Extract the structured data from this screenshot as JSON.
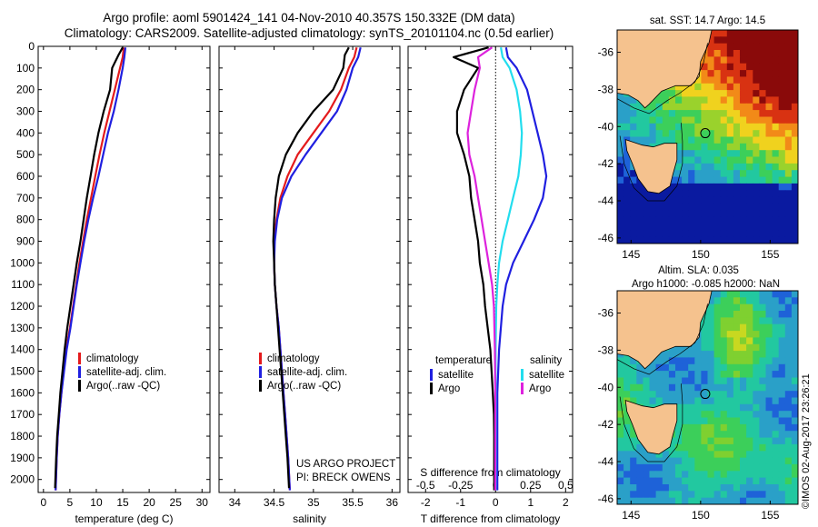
{
  "titles": {
    "line1": "Argo profile: aoml 5901424_141 04-Nov-2010 40.357S 150.332E (DM data)",
    "line2": "Climatology: CARS2009. Satellite-adjusted climatology: synTS_20101104.nc (0.5d earlier)"
  },
  "stamp": "©IMOS 02-Aug-2017 23:26:21",
  "colors": {
    "climatology": "#e41a1c",
    "satellite": "#1f1fe0",
    "argo": "#000000",
    "salinity_satellite": "#22ddee",
    "salinity_argo": "#dd22dd",
    "land": "#f5c28e",
    "coast": "#000000"
  },
  "chart_data": [
    {
      "type": "line",
      "id": "temperature",
      "xlabel": "temperature (deg C)",
      "ylabel": "",
      "xlim": [
        -1,
        31.5
      ],
      "ylim": [
        2060,
        0
      ],
      "xticks": [
        0,
        5,
        10,
        15,
        20,
        25,
        30
      ],
      "xtick_labels": [
        "0",
        "5",
        "10",
        "15",
        "20",
        "25",
        "30"
      ],
      "yticks": [
        0,
        100,
        200,
        300,
        400,
        500,
        600,
        700,
        800,
        900,
        1000,
        1100,
        1200,
        1300,
        1400,
        1500,
        1600,
        1700,
        1800,
        1900,
        2000
      ],
      "ytick_labels": [
        "0",
        "100",
        "200",
        "300",
        "400",
        "500",
        "600",
        "700",
        "800",
        "900",
        "1000",
        "1100",
        "1200",
        "1300",
        "1400",
        "1500",
        "1600",
        "1700",
        "1800",
        "1900",
        "2000"
      ],
      "legend": [
        "climatology",
        "satellite-adj. clim.",
        "Argo(..raw -QC)"
      ],
      "series": [
        {
          "name": "climatology",
          "color": "#e41a1c",
          "x": [
            15.2,
            15.0,
            14.5,
            13.5,
            12.5,
            11.5,
            10.6,
            9.8,
            9.0,
            8.2,
            7.5,
            6.8,
            6.2,
            5.6,
            5.0,
            4.3,
            3.8,
            3.4,
            3.0,
            2.7,
            2.5,
            2.3
          ],
          "y": [
            5,
            50,
            100,
            200,
            300,
            400,
            500,
            600,
            700,
            800,
            900,
            1000,
            1100,
            1200,
            1300,
            1400,
            1500,
            1600,
            1700,
            1800,
            1900,
            2050
          ]
        },
        {
          "name": "satellite-adj. clim.",
          "color": "#1f1fe0",
          "x": [
            15.5,
            15.3,
            15.0,
            14.2,
            13.3,
            12.2,
            11.3,
            10.4,
            9.4,
            8.5,
            7.7,
            7.0,
            6.3,
            5.7,
            5.1,
            4.4,
            3.9,
            3.4,
            3.0,
            2.7,
            2.5,
            2.3
          ],
          "y": [
            5,
            50,
            100,
            200,
            300,
            400,
            500,
            600,
            700,
            800,
            900,
            1000,
            1100,
            1200,
            1300,
            1400,
            1500,
            1600,
            1700,
            1800,
            1900,
            2050
          ]
        },
        {
          "name": "Argo(..raw -QC)",
          "color": "#000000",
          "x": [
            15.0,
            14.2,
            13.0,
            12.6,
            11.4,
            10.4,
            9.6,
            8.9,
            8.2,
            7.6,
            7.0,
            6.3,
            5.7,
            5.1,
            4.5,
            4.0,
            3.6,
            3.2,
            2.9,
            2.6,
            2.4,
            2.2
          ],
          "y": [
            5,
            40,
            100,
            200,
            300,
            400,
            500,
            600,
            700,
            800,
            900,
            1000,
            1100,
            1200,
            1300,
            1400,
            1500,
            1600,
            1700,
            1800,
            1900,
            2040
          ]
        }
      ]
    },
    {
      "type": "line",
      "id": "salinity",
      "xlabel": "salinity",
      "ylabel": "",
      "xlim": [
        33.8,
        36.1
      ],
      "ylim": [
        2060,
        0
      ],
      "xticks": [
        34,
        34.5,
        35,
        35.5,
        36
      ],
      "xtick_labels": [
        "34",
        "34.5",
        "35",
        "35.5",
        "36"
      ],
      "legend": [
        "climatology",
        "satellite-adj. clim.",
        "Argo(..raw -QC)"
      ],
      "annotation": [
        "US ARGO PROJECT",
        "PI: BRECK OWENS"
      ],
      "series": [
        {
          "name": "climatology",
          "color": "#e41a1c",
          "x": [
            35.55,
            35.52,
            35.45,
            35.35,
            35.2,
            35.0,
            34.8,
            34.67,
            34.58,
            34.53,
            34.5,
            34.5,
            34.51,
            34.53,
            34.56,
            34.58,
            34.6,
            34.62,
            34.64,
            34.66,
            34.68,
            34.7
          ],
          "y": [
            5,
            50,
            100,
            200,
            300,
            400,
            500,
            600,
            700,
            800,
            900,
            1000,
            1100,
            1200,
            1300,
            1400,
            1500,
            1600,
            1700,
            1800,
            1900,
            2050
          ]
        },
        {
          "name": "satellite-adj. clim.",
          "color": "#1f1fe0",
          "x": [
            35.6,
            35.57,
            35.5,
            35.42,
            35.3,
            35.1,
            34.9,
            34.72,
            34.6,
            34.54,
            34.51,
            34.5,
            34.51,
            34.53,
            34.56,
            34.58,
            34.6,
            34.62,
            34.64,
            34.66,
            34.68,
            34.7
          ],
          "y": [
            5,
            50,
            100,
            200,
            300,
            400,
            500,
            600,
            700,
            800,
            900,
            1000,
            1100,
            1200,
            1300,
            1400,
            1500,
            1600,
            1700,
            1800,
            1900,
            2050
          ]
        },
        {
          "name": "Argo(..raw -QC)",
          "color": "#000000",
          "x": [
            35.45,
            35.4,
            35.38,
            35.25,
            35.0,
            34.8,
            34.65,
            34.56,
            34.52,
            34.5,
            34.49,
            34.5,
            34.51,
            34.53,
            34.55,
            34.57,
            34.59,
            34.61,
            34.63,
            34.65,
            34.67,
            34.69
          ],
          "y": [
            5,
            40,
            100,
            200,
            300,
            400,
            500,
            600,
            700,
            800,
            900,
            1000,
            1100,
            1200,
            1300,
            1400,
            1500,
            1600,
            1700,
            1800,
            1900,
            2040
          ]
        }
      ]
    },
    {
      "type": "line",
      "id": "difference",
      "xlabel": "T difference from climatology",
      "x2label": "S difference from climatology",
      "xlim": [
        -2.5,
        2.2
      ],
      "ylim": [
        2060,
        0
      ],
      "xticks": [
        -2,
        -1,
        0,
        1,
        2
      ],
      "xtick_labels": [
        "-2",
        "-1",
        "0",
        "1",
        "2"
      ],
      "x2ticks": [
        -2,
        -1,
        0,
        1,
        2
      ],
      "x2tick_labels": [
        "-0.5",
        "-0.25",
        "0",
        "0.25",
        "0.5"
      ],
      "legend_titles": [
        "temperature",
        "salinity"
      ],
      "legend": [
        "satellite",
        "Argo",
        "satellite",
        "Argo"
      ],
      "series": [
        {
          "name": "satellite",
          "quantity": "temperature",
          "color": "#1f1fe0",
          "x": [
            0.3,
            0.35,
            0.6,
            0.9,
            1.05,
            1.2,
            1.35,
            1.45,
            1.35,
            1.1,
            0.8,
            0.5,
            0.3,
            0.2,
            0.1,
            0.05,
            0.05,
            0.05,
            0.05,
            0.05
          ],
          "y": [
            5,
            50,
            100,
            200,
            300,
            400,
            500,
            600,
            700,
            800,
            900,
            1000,
            1100,
            1200,
            1400,
            1600,
            1700,
            1800,
            1900,
            2050
          ]
        },
        {
          "name": "Argo",
          "quantity": "temperature",
          "color": "#000000",
          "x": [
            -0.2,
            -1.2,
            -0.5,
            -0.9,
            -1.1,
            -1.1,
            -0.9,
            -0.75,
            -0.7,
            -0.6,
            -0.5,
            -0.45,
            -0.35,
            -0.3,
            -0.15,
            -0.08,
            -0.05,
            -0.04,
            -0.04,
            -0.04
          ],
          "y": [
            5,
            50,
            100,
            200,
            300,
            400,
            500,
            600,
            700,
            800,
            900,
            1000,
            1100,
            1200,
            1400,
            1600,
            1700,
            1800,
            1900,
            2050
          ]
        },
        {
          "name": "satellite",
          "quantity": "salinity",
          "color": "#22ddee",
          "x": [
            0.15,
            0.2,
            0.4,
            0.6,
            0.7,
            0.75,
            0.72,
            0.65,
            0.5,
            0.35,
            0.2,
            0.1,
            0.05,
            0.02,
            0.0,
            0.0,
            0.0,
            0.0,
            0.0,
            0.0
          ],
          "y": [
            5,
            50,
            100,
            200,
            300,
            400,
            500,
            600,
            700,
            800,
            900,
            1000,
            1100,
            1200,
            1400,
            1600,
            1700,
            1800,
            1900,
            2050
          ]
        },
        {
          "name": "Argo",
          "quantity": "salinity",
          "color": "#dd22dd",
          "x": [
            -0.1,
            -0.5,
            -0.45,
            -0.6,
            -0.7,
            -0.8,
            -0.75,
            -0.6,
            -0.5,
            -0.4,
            -0.3,
            -0.2,
            -0.1,
            -0.05,
            -0.02,
            -0.01,
            -0.01,
            -0.01,
            -0.01,
            -0.01
          ],
          "y": [
            5,
            50,
            100,
            200,
            300,
            400,
            500,
            600,
            700,
            800,
            900,
            1000,
            1100,
            1200,
            1400,
            1600,
            1700,
            1800,
            1900,
            2050
          ]
        }
      ]
    },
    {
      "type": "heatmap",
      "id": "sst-map",
      "title": "sat. SST: 14.7  Argo: 14.5",
      "xlim": [
        144,
        157
      ],
      "ylim": [
        -46.3,
        -34.8
      ],
      "xticks": [
        145,
        150,
        155
      ],
      "xtick_labels": [
        "145",
        "150",
        "155"
      ],
      "yticks": [
        -36,
        -38,
        -40,
        -42,
        -44,
        -46
      ],
      "ytick_labels": [
        "-36",
        "-38",
        "-40",
        "-42",
        "-44",
        "-46"
      ],
      "float_position": [
        150.332,
        -40.357
      ],
      "palette": [
        "#0a1aa0",
        "#1e62d8",
        "#2aa0c8",
        "#22c8a0",
        "#3ccf5a",
        "#9ad22c",
        "#f0d21e",
        "#f28a18",
        "#d83212",
        "#8a0a0a"
      ]
    },
    {
      "type": "heatmap",
      "id": "sla-map",
      "title": "Altim. SLA: 0.035",
      "subtitle": "Argo h1000: -0.085 h2000: NaN",
      "xlim": [
        144,
        157
      ],
      "ylim": [
        -46.3,
        -34.8
      ],
      "xticks": [
        145,
        150,
        155
      ],
      "xtick_labels": [
        "145",
        "150",
        "155"
      ],
      "yticks": [
        -36,
        -38,
        -40,
        -42,
        -44,
        -46
      ],
      "ytick_labels": [
        "-36",
        "-38",
        "-40",
        "-42",
        "-44",
        "-46"
      ],
      "float_position": [
        150.332,
        -40.357
      ],
      "palette": [
        "#1e62d8",
        "#2aa0c8",
        "#22c8a0",
        "#3ccf5a",
        "#7fd030",
        "#c8d820",
        "#f0d21e",
        "#f2a018"
      ]
    }
  ]
}
